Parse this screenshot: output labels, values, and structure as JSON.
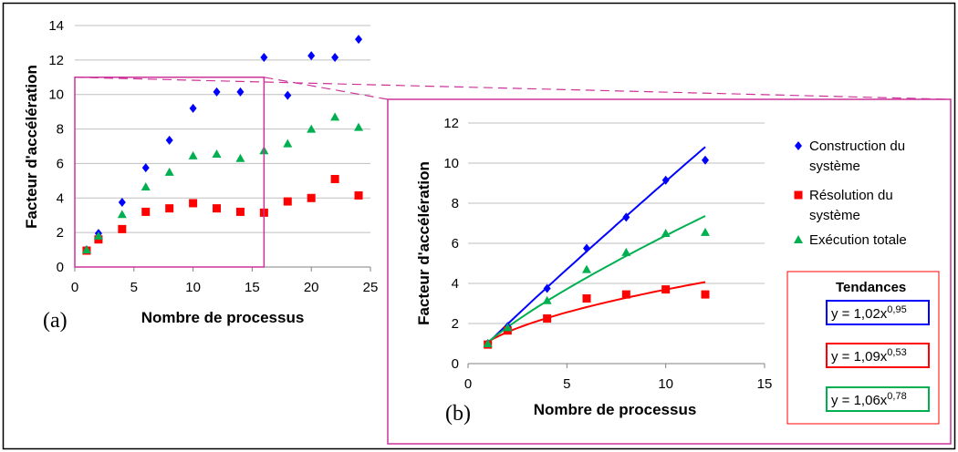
{
  "chart_data": [
    {
      "panel": "(a)",
      "type": "scatter",
      "xlabel": "Nombre de processus",
      "ylabel": "Facteur d'accélération",
      "xlim": [
        0,
        25
      ],
      "ylim": [
        0,
        14
      ],
      "xticks": [
        0,
        5,
        10,
        15,
        20,
        25
      ],
      "yticks": [
        0,
        2,
        4,
        6,
        8,
        10,
        12,
        14
      ],
      "grid": "horizontal",
      "series": [
        {
          "name": "Construction du système",
          "color": "#0000ff",
          "marker": "diamond",
          "x": [
            1,
            2,
            4,
            6,
            8,
            10,
            12,
            14,
            16,
            18,
            20,
            22,
            24
          ],
          "y": [
            1.0,
            1.95,
            3.75,
            5.75,
            7.35,
            9.2,
            10.15,
            10.15,
            12.15,
            9.95,
            12.25,
            12.15,
            13.2
          ]
        },
        {
          "name": "Résolution du système",
          "color": "#ff0000",
          "marker": "square",
          "x": [
            1,
            2,
            4,
            6,
            8,
            10,
            12,
            14,
            16,
            18,
            20,
            22,
            24
          ],
          "y": [
            0.95,
            1.6,
            2.2,
            3.2,
            3.4,
            3.7,
            3.4,
            3.2,
            3.15,
            3.8,
            4.0,
            5.1,
            4.15
          ]
        },
        {
          "name": "Exécution totale",
          "color": "#00b050",
          "marker": "triangle",
          "x": [
            1,
            2,
            4,
            6,
            8,
            10,
            12,
            14,
            16,
            18,
            20,
            22,
            24
          ],
          "y": [
            1.0,
            1.8,
            3.05,
            4.65,
            5.5,
            6.45,
            6.55,
            6.3,
            6.75,
            7.15,
            8.0,
            8.7,
            8.1
          ]
        }
      ],
      "zoom_region": {
        "x": [
          0,
          16
        ],
        "y": [
          0,
          11
        ]
      }
    },
    {
      "panel": "(b)",
      "type": "scatter",
      "xlabel": "Nombre de processus",
      "ylabel": "Facteur d'accélération",
      "xlim": [
        0,
        15
      ],
      "ylim": [
        0,
        12
      ],
      "xticks": [
        0,
        5,
        10,
        15
      ],
      "yticks": [
        0,
        2,
        4,
        6,
        8,
        10,
        12
      ],
      "grid": "horizontal",
      "legend_position": "right",
      "series": [
        {
          "name": "Construction du système",
          "color": "#0000ff",
          "marker": "diamond",
          "x": [
            1,
            2,
            4,
            6,
            8,
            10,
            12
          ],
          "y": [
            1.0,
            1.85,
            3.75,
            5.75,
            7.3,
            9.15,
            10.15
          ],
          "trend": {
            "a": 1.02,
            "b": 0.95
          }
        },
        {
          "name": "Résolution du système",
          "color": "#ff0000",
          "marker": "square",
          "x": [
            1,
            2,
            4,
            6,
            8,
            10,
            12
          ],
          "y": [
            0.95,
            1.65,
            2.25,
            3.25,
            3.45,
            3.7,
            3.45
          ],
          "trend": {
            "a": 1.09,
            "b": 0.53
          }
        },
        {
          "name": "Exécution totale",
          "color": "#00b050",
          "marker": "triangle",
          "x": [
            1,
            2,
            4,
            6,
            8,
            10,
            12
          ],
          "y": [
            1.0,
            1.8,
            3.15,
            4.7,
            5.55,
            6.5,
            6.55
          ],
          "trend": {
            "a": 1.06,
            "b": 0.78
          }
        }
      ],
      "legend": [
        {
          "line1": "Construction du",
          "line2": "système",
          "color": "#0000ff",
          "marker": "diamond"
        },
        {
          "line1": "Résolution du",
          "line2": "système",
          "color": "#ff0000",
          "marker": "square"
        },
        {
          "line1": "Exécution totale",
          "line2": "",
          "color": "#00b050",
          "marker": "triangle"
        }
      ],
      "trends_title": "Tendances",
      "trends": [
        {
          "prefix": "y = 1,02x",
          "exp": "0,95",
          "color": "#0000ff"
        },
        {
          "prefix": "y = 1,09x",
          "exp": "0,53",
          "color": "#ff0000"
        },
        {
          "prefix": "y = 1,06x",
          "exp": "0,78",
          "color": "#00b050"
        }
      ]
    }
  ],
  "colors": {
    "zoom": "#cc3399",
    "trend_box": "#ff0000",
    "grid": "#bfbfbf"
  }
}
